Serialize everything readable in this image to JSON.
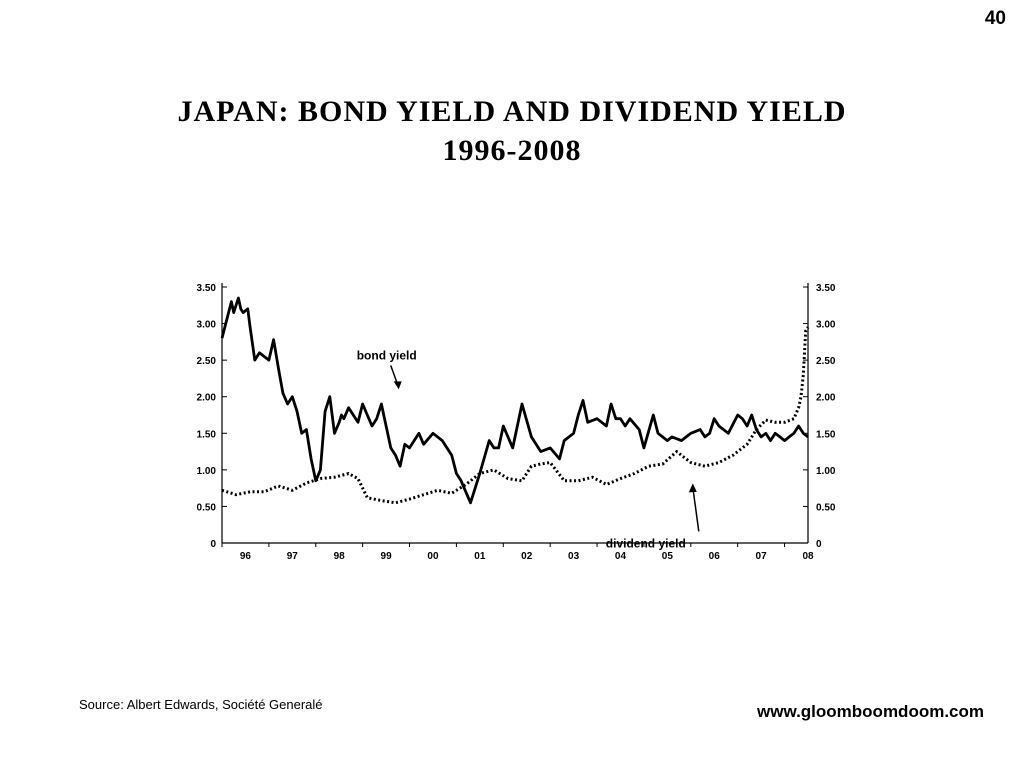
{
  "slide": {
    "number": "40"
  },
  "title": {
    "line1": "JAPAN:  BOND  YIELD  AND  DIVIDEND  YIELD",
    "line2": "1996-2008"
  },
  "footer": {
    "source": "Source:  Albert Edwards, Société Generalé",
    "website": "www.gloomboomdoom.com"
  },
  "chart_data": {
    "type": "line",
    "title": "",
    "xlabel": "",
    "ylabel": "",
    "xlim": [
      1996,
      2008.5
    ],
    "ylim": [
      0,
      3.5
    ],
    "y_ticks": [
      "3.50",
      "3.00",
      "2.50",
      "2.00",
      "1.50",
      "1.00",
      "0.50",
      "0"
    ],
    "x_ticks": [
      "96",
      "97",
      "98",
      "99",
      "00",
      "01",
      "02",
      "03",
      "04",
      "05",
      "06",
      "07",
      "08"
    ],
    "x_tick_values": [
      1996.5,
      1997.5,
      1998.5,
      1999.5,
      2000.5,
      2001.5,
      2002.5,
      2003.5,
      2004.5,
      2005.5,
      2006.5,
      2007.5,
      2008.5
    ],
    "grid": false,
    "annotations": [
      {
        "text": "bond yield",
        "x": 1999.3,
        "y": 2.1
      },
      {
        "text": "dividend yield",
        "x": 2006.0,
        "y": 0.87
      }
    ],
    "series": [
      {
        "style": "solid",
        "x": [
          1996.0,
          1996.1,
          1996.2,
          1996.25,
          1996.35,
          1996.4,
          1996.45,
          1996.55,
          1996.6,
          1996.7,
          1996.8,
          1996.9,
          1997.0,
          1997.1,
          1997.2,
          1997.3,
          1997.4,
          1997.5,
          1997.6,
          1997.7,
          1997.8,
          1997.9,
          1998.0,
          1998.1,
          1998.2,
          1998.3,
          1998.4,
          1998.5,
          1998.55,
          1998.6,
          1998.7,
          1998.8,
          1998.9,
          1999.0,
          1999.1,
          1999.2,
          1999.3,
          1999.4,
          1999.5,
          1999.6,
          1999.7,
          1999.8,
          1999.9,
          2000.0,
          2000.2,
          2000.3,
          2000.5,
          2000.7,
          2000.9,
          2001.0,
          2001.1,
          2001.3,
          2001.5,
          2001.7,
          2001.8,
          2001.9,
          2002.0,
          2002.2,
          2002.4,
          2002.6,
          2002.8,
          2003.0,
          2003.2,
          2003.3,
          2003.5,
          2003.6,
          2003.7,
          2003.8,
          2004.0,
          2004.2,
          2004.3,
          2004.4,
          2004.5,
          2004.6,
          2004.7,
          2004.9,
          2005.0,
          2005.2,
          2005.3,
          2005.5,
          2005.6,
          2005.8,
          2006.0,
          2006.2,
          2006.3,
          2006.4,
          2006.5,
          2006.6,
          2006.8,
          2007.0,
          2007.1,
          2007.2,
          2007.3,
          2007.4,
          2007.5,
          2007.6,
          2007.7,
          2007.8,
          2007.9,
          2008.0,
          2008.1,
          2008.2,
          2008.3,
          2008.4,
          2008.5
        ],
        "values": [
          2.8,
          3.05,
          3.3,
          3.15,
          3.35,
          3.2,
          3.15,
          3.2,
          2.95,
          2.5,
          2.6,
          2.55,
          2.5,
          2.78,
          2.4,
          2.05,
          1.9,
          2.0,
          1.8,
          1.5,
          1.55,
          1.15,
          0.85,
          1.0,
          1.8,
          2.0,
          1.5,
          1.65,
          1.75,
          1.7,
          1.85,
          1.75,
          1.65,
          1.9,
          1.75,
          1.6,
          1.7,
          1.9,
          1.6,
          1.3,
          1.2,
          1.05,
          1.35,
          1.3,
          1.5,
          1.35,
          1.5,
          1.4,
          1.2,
          0.95,
          0.85,
          0.55,
          0.95,
          1.4,
          1.3,
          1.3,
          1.6,
          1.3,
          1.9,
          1.45,
          1.25,
          1.3,
          1.15,
          1.4,
          1.5,
          1.75,
          1.95,
          1.65,
          1.7,
          1.6,
          1.9,
          1.7,
          1.7,
          1.6,
          1.7,
          1.55,
          1.3,
          1.75,
          1.5,
          1.4,
          1.45,
          1.4,
          1.5,
          1.55,
          1.45,
          1.5,
          1.7,
          1.6,
          1.5,
          1.75,
          1.7,
          1.6,
          1.75,
          1.55,
          1.45,
          1.5,
          1.4,
          1.5,
          1.45,
          1.4,
          1.45,
          1.5,
          1.6,
          1.5,
          1.45
        ]
      },
      {
        "style": "dotted",
        "x": [
          1996.0,
          1996.3,
          1996.6,
          1996.9,
          1997.2,
          1997.5,
          1997.8,
          1998.1,
          1998.4,
          1998.7,
          1998.9,
          1999.1,
          1999.4,
          1999.7,
          2000.0,
          2000.3,
          2000.6,
          2000.9,
          2001.2,
          2001.5,
          2001.8,
          2002.1,
          2002.4,
          2002.6,
          2002.8,
          2003.0,
          2003.3,
          2003.6,
          2003.9,
          2004.2,
          2004.5,
          2004.8,
          2005.1,
          2005.4,
          2005.7,
          2006.0,
          2006.3,
          2006.6,
          2006.9,
          2007.2,
          2007.4,
          2007.6,
          2007.8,
          2008.0,
          2008.2,
          2008.3,
          2008.35,
          2008.4,
          2008.45,
          2008.5
        ],
        "values": [
          0.72,
          0.66,
          0.7,
          0.7,
          0.78,
          0.72,
          0.82,
          0.88,
          0.9,
          0.95,
          0.88,
          0.62,
          0.58,
          0.55,
          0.6,
          0.66,
          0.72,
          0.68,
          0.8,
          0.95,
          1.0,
          0.88,
          0.85,
          1.05,
          1.08,
          1.1,
          0.85,
          0.85,
          0.9,
          0.8,
          0.88,
          0.95,
          1.05,
          1.08,
          1.25,
          1.1,
          1.05,
          1.1,
          1.2,
          1.35,
          1.55,
          1.68,
          1.65,
          1.65,
          1.7,
          1.85,
          2.0,
          2.3,
          2.9,
          2.95
        ]
      }
    ]
  }
}
